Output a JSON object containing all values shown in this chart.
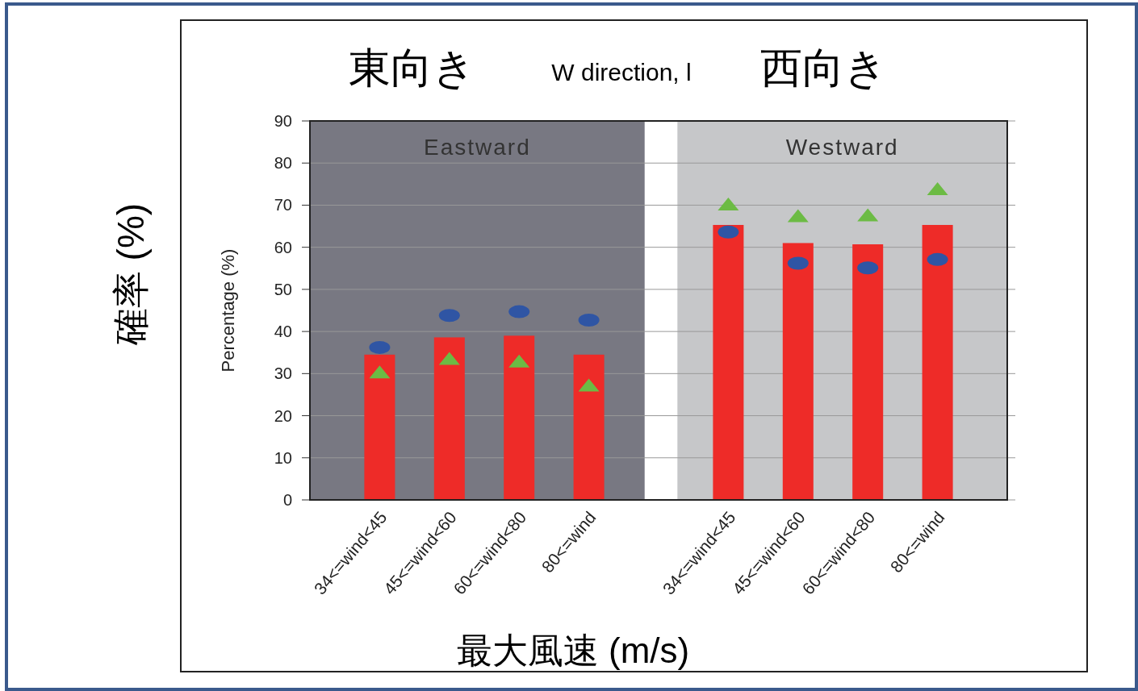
{
  "chart_data": {
    "type": "bar",
    "ylabel": "Percentage (%)",
    "xlabel": "最大風速 (m/s)",
    "annotations": [
      "東向き",
      "W direction, l",
      "西向き",
      "確率 (%)",
      "Eastward",
      "Westward"
    ],
    "categories": [
      "34<=wind<45",
      "45<=wind<60",
      "60<=wind<80",
      "80<=wind",
      null,
      "34<=wind<45",
      "45<=wind<60",
      "60<=wind<80",
      "80<=wind"
    ],
    "series": [
      {
        "color": "#ee2b28",
        "values": [
          34.5,
          38.6,
          39,
          34.5,
          null,
          65.3,
          61,
          60.7,
          65.3
        ]
      },
      {
        "type": "scatter",
        "marker": "circle",
        "color": "#2f55a4",
        "values": [
          36.2,
          43.8,
          44.7,
          42.7,
          null,
          63.6,
          56.2,
          55.1,
          57.1
        ]
      },
      {
        "type": "scatter",
        "marker": "triangle",
        "color": "#6cbb44",
        "values": [
          30.2,
          33.4,
          32.8,
          27.1,
          null,
          70.1,
          67.3,
          67.5,
          73.7
        ]
      }
    ],
    "ylim": [
      0,
      90
    ],
    "yticks": [
      0,
      10,
      20,
      30,
      40,
      50,
      60,
      70,
      80,
      90
    ],
    "grid": "y"
  }
}
